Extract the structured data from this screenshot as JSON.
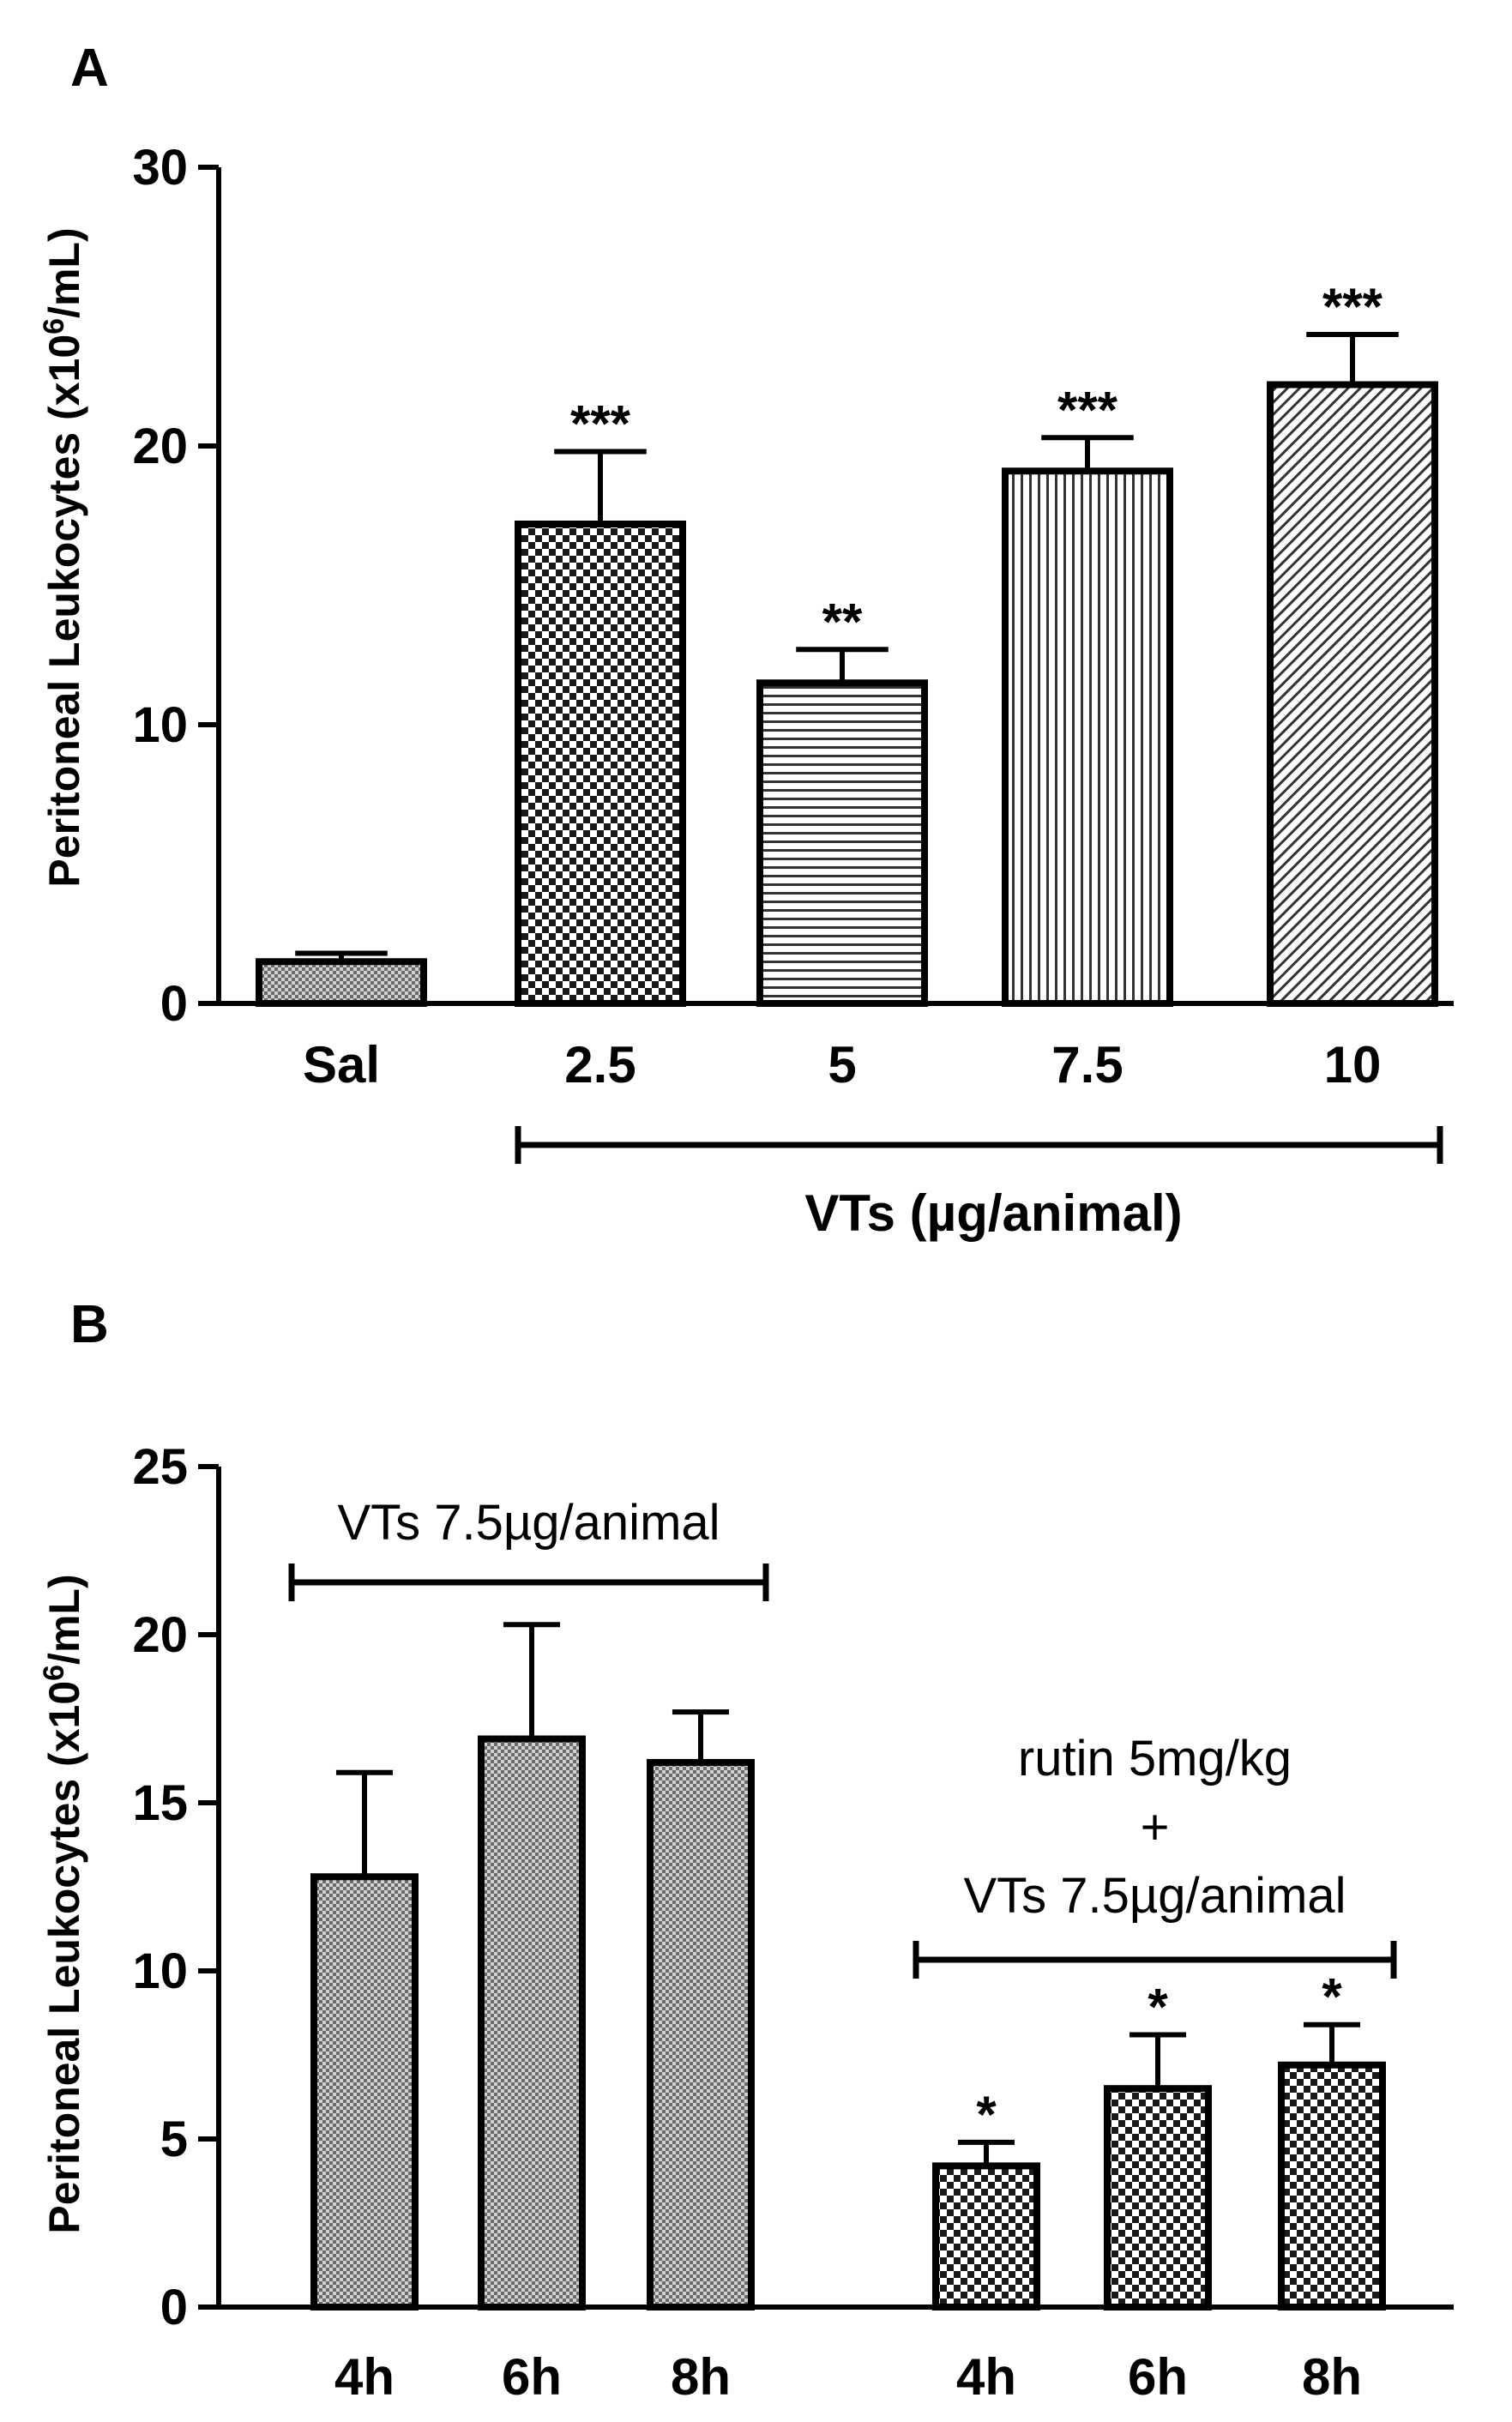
{
  "chart_data": [
    {
      "type": "bar",
      "panel": "A",
      "ylabel": "Peritoneal Leukocytes (x10",
      "ylabel_sup": "6",
      "ylabel_unit": "/mL)",
      "ylim": [
        0,
        30
      ],
      "yticks": [
        "0",
        "10",
        "20",
        "30"
      ],
      "categories": [
        "Sal",
        "2.5",
        "5",
        "7.5",
        "10"
      ],
      "values": [
        1.5,
        17.2,
        11.5,
        19.1,
        22.2
      ],
      "errors": [
        0.3,
        2.6,
        1.2,
        1.2,
        1.8
      ],
      "significance": [
        "",
        "***",
        "**",
        "***",
        "***"
      ],
      "patterns": [
        "fine-dots",
        "checker",
        "horizontal-lines",
        "vertical-lines",
        "diagonal-lines"
      ],
      "group_bracket": {
        "label": "VTs (µg/animal)",
        "from": 1,
        "to": 4
      },
      "grid": false
    },
    {
      "type": "bar",
      "panel": "B",
      "ylabel": "Peritoneal Leukocytes (x10",
      "ylabel_sup": "6",
      "ylabel_unit": "/mL)",
      "ylim": [
        0,
        25
      ],
      "yticks": [
        "0",
        "5",
        "10",
        "15",
        "20",
        "25"
      ],
      "categories": [
        "4h",
        "6h",
        "8h",
        "4h",
        "6h",
        "8h"
      ],
      "values": [
        12.8,
        16.9,
        16.2,
        4.2,
        6.5,
        7.2
      ],
      "errors": [
        3.1,
        3.4,
        1.5,
        0.7,
        1.6,
        1.2
      ],
      "significance": [
        "",
        "",
        "",
        "*",
        "*",
        "*"
      ],
      "patterns": [
        "fine-dots",
        "fine-dots",
        "fine-dots",
        "checker",
        "checker",
        "checker"
      ],
      "groups": [
        {
          "label_lines": [
            "VTs 7.5µg/animal"
          ],
          "from": 0,
          "to": 2
        },
        {
          "label_lines": [
            "rutin 5mg/kg",
            "+",
            "VTs 7.5µg/animal"
          ],
          "from": 3,
          "to": 5
        }
      ],
      "grid": false
    }
  ]
}
